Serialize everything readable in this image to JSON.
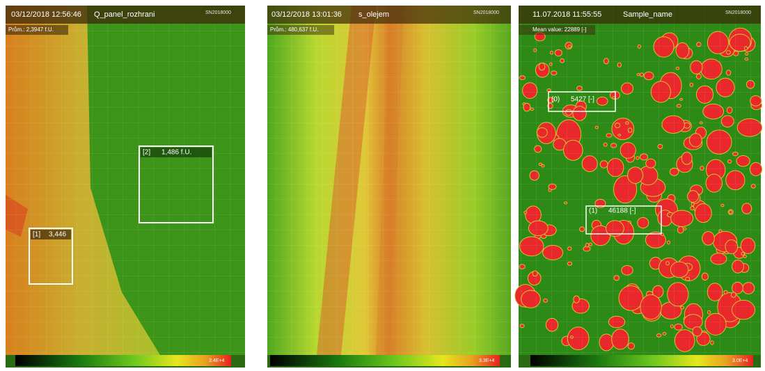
{
  "panels": [
    {
      "timestamp": "03/12/2018 12:56:46",
      "name": "Q_panel_rozhrani",
      "serial": "SN2018000",
      "mean": "Prům.: 2,3947 f.U.",
      "rois": [
        {
          "label": "[2]",
          "value": "1,486 f.U."
        },
        {
          "label": "[1]",
          "value": "3,446"
        }
      ],
      "scale_max": "3.4E+4"
    },
    {
      "timestamp": "03/12/2018 13:01:36",
      "name": "s_olejem",
      "serial": "SN2018000",
      "mean": "Prům.: 480,637 f.U.",
      "rois": [],
      "scale_max": "3.3E+4"
    },
    {
      "timestamp": "11.07.2018 11:55:55",
      "name": "Sample_name",
      "serial": "SN2018000",
      "mean": "Mean value: 22889 [-]",
      "rois": [
        {
          "label": "(0)",
          "value": "5427 [-]"
        },
        {
          "label": "(1)",
          "value": "46188 [-]"
        }
      ],
      "scale_max": "3.0E+4"
    }
  ]
}
